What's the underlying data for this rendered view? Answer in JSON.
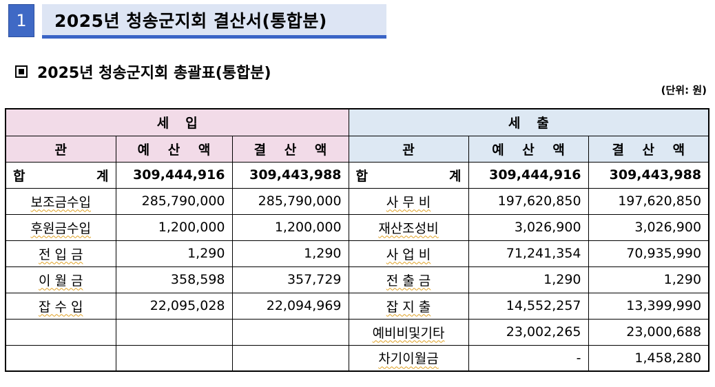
{
  "header": {
    "section_number": "1",
    "title": "2025년 청송군지회 결산서(통합분)"
  },
  "subtitle": "2025년 청송군지회 총괄표(통합분)",
  "unit": "(단위: 원)",
  "table": {
    "income_group": "세입",
    "expense_group": "세출",
    "columns": {
      "category": "관",
      "budget": "예 산 액",
      "settlement": "결 산 액"
    },
    "rows": [
      {
        "in_cat": "합 계",
        "in_budget": "309,444,916",
        "in_settle": "309,443,988",
        "out_cat": "합 계",
        "out_budget": "309,444,916",
        "out_settle": "309,443,988"
      },
      {
        "in_cat": "보조금수입",
        "in_budget": "285,790,000",
        "in_settle": "285,790,000",
        "out_cat": "사 무 비",
        "out_budget": "197,620,850",
        "out_settle": "197,620,850"
      },
      {
        "in_cat": "후원금수입",
        "in_budget": "1,200,000",
        "in_settle": "1,200,000",
        "out_cat": "재산조성비",
        "out_budget": "3,026,900",
        "out_settle": "3,026,900"
      },
      {
        "in_cat": "전 입 금",
        "in_budget": "1,290",
        "in_settle": "1,290",
        "out_cat": "사 업 비",
        "out_budget": "71,241,354",
        "out_settle": "70,935,990"
      },
      {
        "in_cat": "이 월 금",
        "in_budget": "358,598",
        "in_settle": "357,729",
        "out_cat": "전 출 금",
        "out_budget": "1,290",
        "out_settle": "1,290"
      },
      {
        "in_cat": "잡 수 입",
        "in_budget": "22,095,028",
        "in_settle": "22,094,969",
        "out_cat": "잡 지 출",
        "out_budget": "14,552,257",
        "out_settle": "13,399,990"
      },
      {
        "in_cat": "",
        "in_budget": "",
        "in_settle": "",
        "out_cat": "예비비및기타",
        "out_budget": "23,002,265",
        "out_settle": "23,000,688"
      },
      {
        "in_cat": "",
        "in_budget": "",
        "in_settle": "",
        "out_cat": "차기이월금",
        "out_budget": "-",
        "out_settle": "1,458,280"
      }
    ]
  }
}
